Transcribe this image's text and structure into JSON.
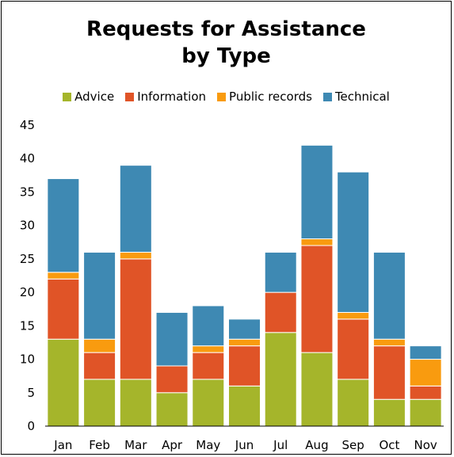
{
  "chart_data": {
    "type": "bar",
    "stacked": true,
    "title": "Requests for Assistance by Type",
    "title_lines": [
      "Requests for Assistance",
      "by Type"
    ],
    "xlabel": "",
    "ylabel": "",
    "categories": [
      "Jan",
      "Feb",
      "Mar",
      "Apr",
      "May",
      "Jun",
      "Jul",
      "Aug",
      "Sep",
      "Oct",
      "Nov"
    ],
    "series": [
      {
        "name": "Advice",
        "color": "#a5b52b",
        "values": [
          13,
          7,
          7,
          5,
          7,
          6,
          14,
          11,
          7,
          4,
          4
        ]
      },
      {
        "name": "Information",
        "color": "#e05427",
        "values": [
          9,
          4,
          18,
          4,
          4,
          6,
          6,
          16,
          9,
          8,
          2
        ]
      },
      {
        "name": "Public records",
        "color": "#f99b0f",
        "values": [
          1,
          2,
          1,
          0,
          1,
          1,
          0,
          1,
          1,
          1,
          4
        ]
      },
      {
        "name": "Technical",
        "color": "#3e89b3",
        "values": [
          14,
          13,
          13,
          8,
          6,
          3,
          6,
          14,
          21,
          13,
          2
        ]
      }
    ],
    "ylim": [
      0,
      45
    ],
    "yticks": [
      0,
      5,
      10,
      15,
      20,
      25,
      30,
      35,
      40,
      45
    ],
    "grid": false,
    "legend_position": "top"
  }
}
